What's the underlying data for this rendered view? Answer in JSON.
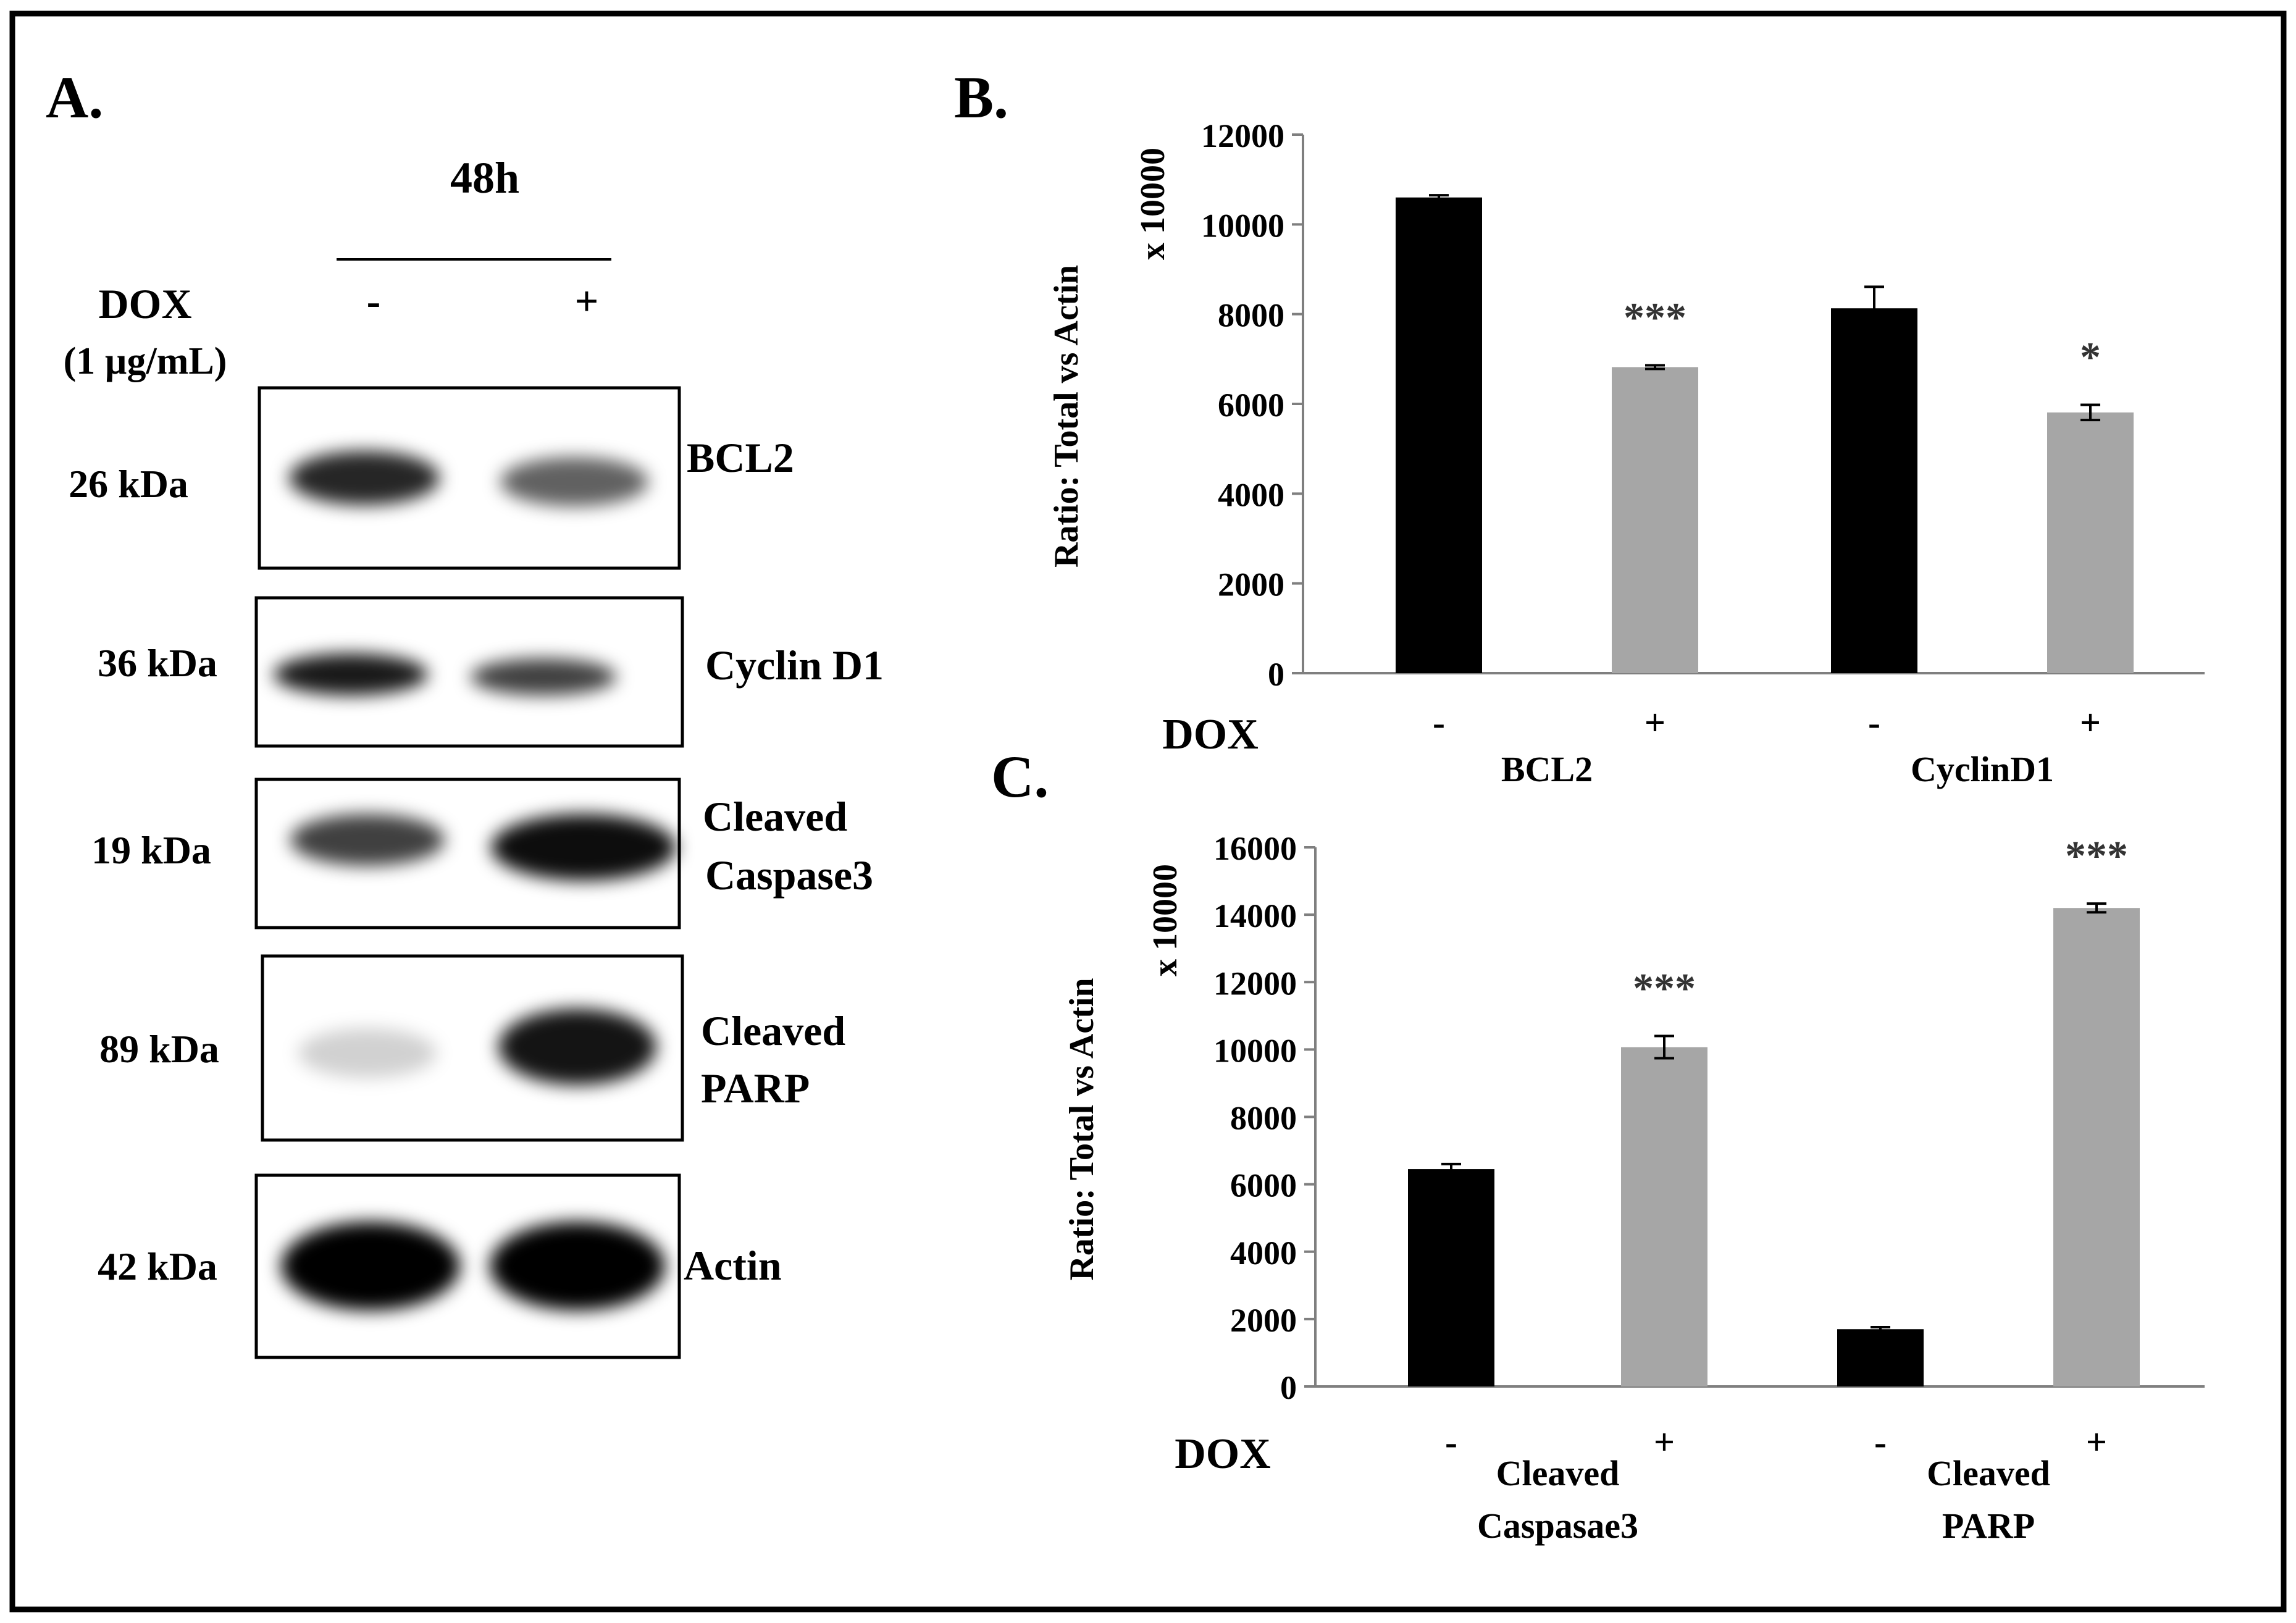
{
  "figure": {
    "panel_a": {
      "label": "A.",
      "time": "48h",
      "dox_label": "DOX",
      "dox_conc": "(1 µg/mL)",
      "lane_minus": "-",
      "lane_plus": "+",
      "blots": [
        {
          "mw": "26 kDa",
          "name_lines": [
            "BCL2"
          ],
          "intensity": [
            0.85,
            0.62
          ]
        },
        {
          "mw": "36 kDa",
          "name_lines": [
            "Cyclin  D1"
          ],
          "intensity": [
            0.9,
            0.75
          ]
        },
        {
          "mw": "19 kDa",
          "name_lines": [
            "Cleaved",
            "Caspase3"
          ],
          "intensity": [
            0.75,
            0.95
          ]
        },
        {
          "mw": "89 kDa",
          "name_lines": [
            "Cleaved",
            "PARP"
          ],
          "intensity": [
            0.18,
            0.92
          ]
        },
        {
          "mw": "42 kDa",
          "name_lines": [
            "Actin"
          ],
          "intensity": [
            1.0,
            1.0
          ]
        }
      ]
    },
    "panel_b": {
      "label": "B."
    },
    "panel_c": {
      "label": "C."
    }
  },
  "chart_data": [
    {
      "type": "bar",
      "ylabel": "Ratio:  Total  vs  Actin",
      "yunit": "x 10000",
      "ylim": [
        0,
        12000
      ],
      "yticks": [
        0,
        2000,
        4000,
        6000,
        8000,
        10000,
        12000
      ],
      "row_label": "DOX",
      "groups": [
        {
          "label_lines": [
            "BCL2"
          ],
          "bars": [
            {
              "dox": "-",
              "value": 10600,
              "error": 50,
              "color": "#000000",
              "sig": ""
            },
            {
              "dox": "+",
              "value": 6820,
              "error": 40,
              "color": "#a6a6a6",
              "sig": "***"
            }
          ]
        },
        {
          "label_lines": [
            "CyclinD1"
          ],
          "bars": [
            {
              "dox": "-",
              "value": 8130,
              "error": 480,
              "color": "#000000",
              "sig": ""
            },
            {
              "dox": "+",
              "value": 5810,
              "error": 170,
              "color": "#a6a6a6",
              "sig": "*"
            }
          ]
        }
      ]
    },
    {
      "type": "bar",
      "ylabel": "Ratio:  Total  vs  Actin",
      "yunit": "x 10000",
      "ylim": [
        0,
        16000
      ],
      "yticks": [
        0,
        2000,
        4000,
        6000,
        8000,
        10000,
        12000,
        14000,
        16000
      ],
      "row_label": "DOX",
      "groups": [
        {
          "label_lines": [
            "Cleaved",
            "Caspasae3"
          ],
          "bars": [
            {
              "dox": "-",
              "value": 6450,
              "error": 150,
              "color": "#000000",
              "sig": ""
            },
            {
              "dox": "+",
              "value": 10070,
              "error": 330,
              "color": "#a6a6a6",
              "sig": "***"
            }
          ]
        },
        {
          "label_lines": [
            "Cleaved",
            "PARP"
          ],
          "bars": [
            {
              "dox": "-",
              "value": 1700,
              "error": 60,
              "color": "#000000",
              "sig": ""
            },
            {
              "dox": "+",
              "value": 14200,
              "error": 130,
              "color": "#a6a6a6",
              "sig": "***"
            }
          ]
        }
      ]
    }
  ]
}
